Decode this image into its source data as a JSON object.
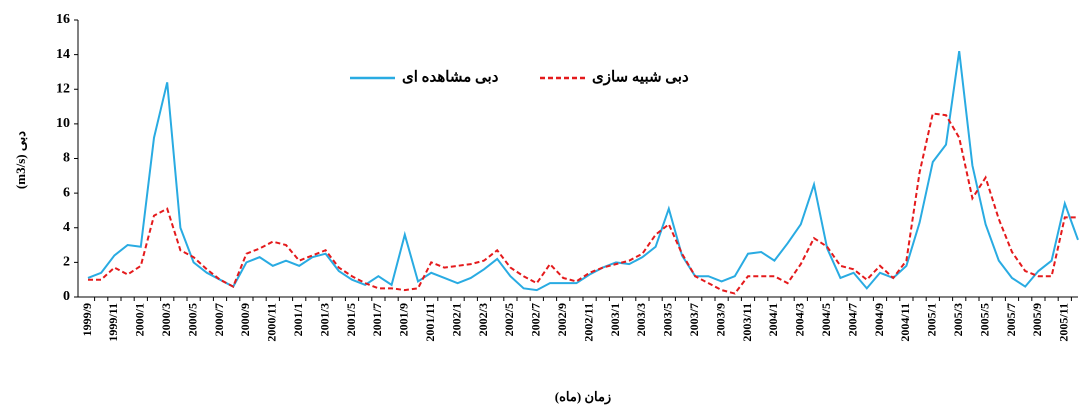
{
  "chart_data": {
    "type": "line",
    "y_label": "دبی (m3/s)",
    "x_label": "زمان (ماه)",
    "categories": [
      "1999/9",
      null,
      "1999/11",
      null,
      "2000/1",
      null,
      "2000/3",
      null,
      "2000/5",
      null,
      "2000/7",
      null,
      "2000/9",
      null,
      "2000/11",
      null,
      "2001/1",
      null,
      "2001/3",
      null,
      "2001/5",
      null,
      "2001/7",
      null,
      "2001/9",
      null,
      "2001/11",
      null,
      "2002/1",
      null,
      "2002/3",
      null,
      "2002/5",
      null,
      "2002/7",
      null,
      "2002/9",
      null,
      "2002/11",
      null,
      "2003/1",
      null,
      "2003/3",
      null,
      "2003/5",
      null,
      "2003/7",
      null,
      "2003/9",
      null,
      "2003/11",
      null,
      "2004/1",
      null,
      "2004/3",
      null,
      "2004/5",
      null,
      "2004/7",
      null,
      "2004/9",
      null,
      "2004/11",
      null,
      "2005/1",
      null,
      "2005/3",
      null,
      "2005/5",
      null,
      "2005/7",
      null,
      "2005/9",
      null,
      "2005/11",
      null
    ],
    "series": [
      {
        "name": "دبی مشاهده ای",
        "color": "#29abe2",
        "line_style": "solid",
        "values": [
          1.1,
          1.4,
          2.4,
          3.0,
          2.9,
          9.2,
          12.4,
          4.0,
          2.0,
          1.4,
          1.0,
          0.6,
          2.0,
          2.3,
          1.8,
          2.1,
          1.8,
          2.3,
          2.5,
          1.5,
          1.0,
          0.7,
          1.2,
          0.7,
          3.6,
          0.9,
          1.4,
          1.1,
          0.8,
          1.1,
          1.6,
          2.2,
          1.2,
          0.5,
          0.4,
          0.8,
          0.8,
          0.8,
          1.3,
          1.7,
          2.0,
          1.9,
          2.3,
          2.9,
          5.1,
          2.4,
          1.2,
          1.2,
          0.9,
          1.2,
          2.5,
          2.6,
          2.1,
          3.1,
          4.2,
          6.5,
          2.8,
          1.1,
          1.4,
          0.5,
          1.4,
          1.1,
          1.8,
          4.3,
          7.8,
          8.8,
          14.2,
          7.6,
          4.2,
          2.1,
          1.1,
          0.6,
          1.5,
          2.1,
          5.4,
          3.3
        ]
      },
      {
        "name": "دبی شبیه سازی",
        "color": "#e41a1c",
        "line_style": "dashed",
        "values": [
          1.0,
          1.0,
          1.7,
          1.3,
          1.8,
          4.7,
          5.1,
          2.7,
          2.3,
          1.6,
          1.0,
          0.6,
          2.5,
          2.8,
          3.2,
          3.0,
          2.1,
          2.4,
          2.7,
          1.7,
          1.2,
          0.8,
          0.5,
          0.5,
          0.4,
          0.5,
          2.0,
          1.7,
          1.8,
          1.9,
          2.1,
          2.7,
          1.7,
          1.2,
          0.8,
          1.9,
          1.1,
          0.9,
          1.4,
          1.7,
          1.9,
          2.1,
          2.5,
          3.6,
          4.2,
          2.5,
          1.2,
          0.8,
          0.4,
          0.2,
          1.2,
          1.2,
          1.2,
          0.8,
          1.9,
          3.4,
          2.9,
          1.8,
          1.6,
          1.0,
          1.8,
          1.1,
          2.1,
          7.2,
          10.6,
          10.5,
          9.2,
          5.7,
          6.9,
          4.5,
          2.6,
          1.5,
          1.2,
          1.2,
          4.6,
          4.6
        ]
      }
    ],
    "ylim": [
      0,
      16
    ],
    "yticks": [
      0,
      2,
      4,
      6,
      8,
      10,
      12,
      14,
      16
    ],
    "grid": false,
    "legend": "top"
  }
}
